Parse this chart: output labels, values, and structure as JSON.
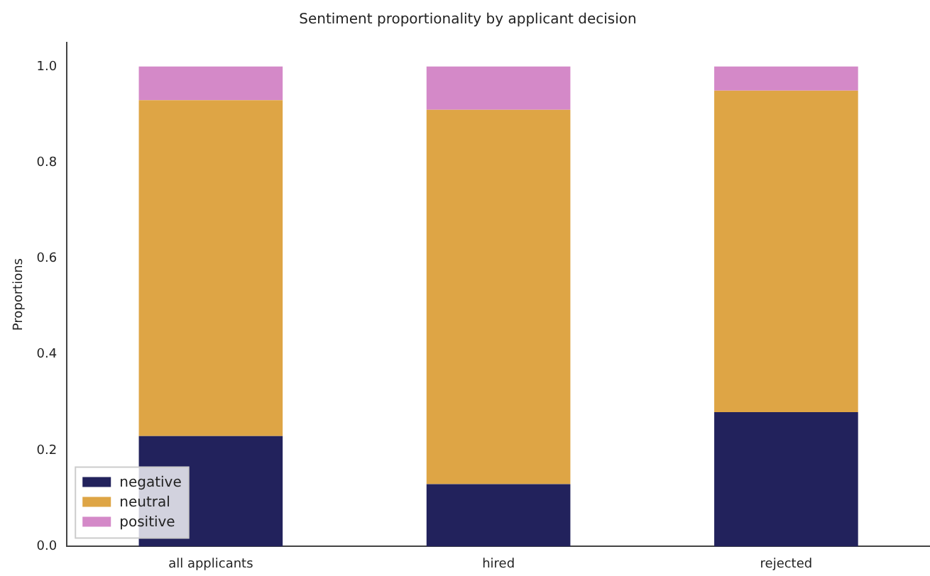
{
  "chart_data": {
    "type": "bar",
    "title": "Sentiment proportionality by applicant decision",
    "ylabel": "Proportions",
    "categories": [
      "all applicants",
      "hired",
      "rejected"
    ],
    "series": [
      {
        "name": "negative",
        "color": "#22225c",
        "values": [
          0.23,
          0.13,
          0.28
        ]
      },
      {
        "name": "neutral",
        "color": "#dea545",
        "values": [
          0.7,
          0.78,
          0.67
        ]
      },
      {
        "name": "positive",
        "color": "#d489c8",
        "values": [
          0.07,
          0.09,
          0.05
        ]
      }
    ],
    "stacked": true,
    "ylim": [
      0,
      1.05
    ],
    "yticks": [
      {
        "value": 0,
        "label": "0.0"
      },
      {
        "value": 0.2,
        "label": "0.2"
      },
      {
        "value": 0.4,
        "label": "0.4"
      },
      {
        "value": 0.6,
        "label": "0.6"
      },
      {
        "value": 0.8,
        "label": "0.8"
      },
      {
        "value": 1,
        "label": "1.0"
      }
    ],
    "grid": false,
    "legend": "bottom left"
  }
}
